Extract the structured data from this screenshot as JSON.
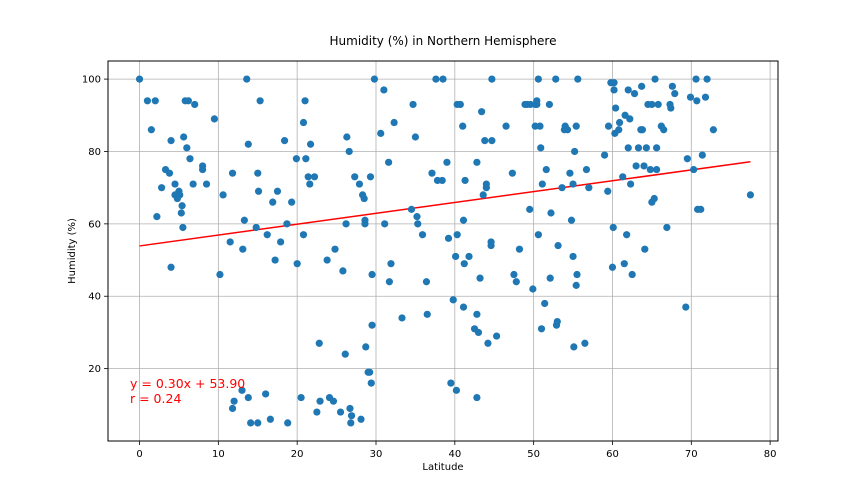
{
  "chart_data": {
    "type": "scatter",
    "title": "Humidity (%) in Northern Hemisphere",
    "xlabel": "Latitude",
    "ylabel": "Humidity (%)",
    "xlim": [
      -4,
      81
    ],
    "ylim": [
      0,
      105
    ],
    "x_ticks": [
      "0",
      "10",
      "20",
      "30",
      "40",
      "50",
      "60",
      "70",
      "80"
    ],
    "y_ticks": [
      "20",
      "40",
      "60",
      "80",
      "100"
    ],
    "grid": true,
    "point_color": "#1f77b4",
    "line_color": "#ff0000",
    "regression": {
      "slope": 0.3,
      "intercept": 53.9,
      "x_range": [
        0,
        77.5
      ]
    },
    "annotation_lines": [
      "y = 0.30x + 53.90",
      "r = 0.24"
    ],
    "annotation_color": "#ff0000",
    "points": [
      [
        0.0,
        100
      ],
      [
        1.0,
        94
      ],
      [
        1.5,
        86
      ],
      [
        2.0,
        94
      ],
      [
        2.2,
        62
      ],
      [
        2.8,
        70
      ],
      [
        3.3,
        75
      ],
      [
        3.8,
        74
      ],
      [
        4.0,
        83
      ],
      [
        4.0,
        48
      ],
      [
        4.5,
        71
      ],
      [
        4.5,
        68
      ],
      [
        4.8,
        67
      ],
      [
        5.0,
        69
      ],
      [
        5.1,
        68
      ],
      [
        5.3,
        63
      ],
      [
        5.4,
        65
      ],
      [
        5.5,
        59
      ],
      [
        5.6,
        84
      ],
      [
        5.8,
        94
      ],
      [
        6.0,
        81
      ],
      [
        6.2,
        94
      ],
      [
        6.4,
        78
      ],
      [
        6.8,
        71
      ],
      [
        7.0,
        93
      ],
      [
        8.0,
        76
      ],
      [
        8.0,
        75
      ],
      [
        8.5,
        71
      ],
      [
        9.5,
        89
      ],
      [
        10.2,
        46
      ],
      [
        10.6,
        68
      ],
      [
        11.5,
        55
      ],
      [
        11.8,
        74
      ],
      [
        11.8,
        9
      ],
      [
        12.0,
        11
      ],
      [
        13.0,
        14
      ],
      [
        13.1,
        53
      ],
      [
        13.3,
        61
      ],
      [
        13.6,
        100
      ],
      [
        13.8,
        82
      ],
      [
        13.8,
        12
      ],
      [
        14.1,
        5
      ],
      [
        14.8,
        59
      ],
      [
        15.0,
        74
      ],
      [
        15.1,
        69
      ],
      [
        15.3,
        94
      ],
      [
        15.0,
        5
      ],
      [
        16.0,
        13
      ],
      [
        16.2,
        57
      ],
      [
        16.6,
        6
      ],
      [
        16.9,
        66
      ],
      [
        17.2,
        50
      ],
      [
        17.5,
        69
      ],
      [
        17.9,
        55
      ],
      [
        18.4,
        83
      ],
      [
        18.7,
        60
      ],
      [
        18.8,
        5
      ],
      [
        19.3,
        66
      ],
      [
        19.9,
        78
      ],
      [
        20.0,
        49
      ],
      [
        20.5,
        12
      ],
      [
        20.8,
        88
      ],
      [
        20.8,
        57
      ],
      [
        21.0,
        94
      ],
      [
        21.1,
        78
      ],
      [
        21.4,
        73
      ],
      [
        21.6,
        71
      ],
      [
        21.7,
        82
      ],
      [
        22.2,
        73
      ],
      [
        22.5,
        8
      ],
      [
        22.8,
        27
      ],
      [
        22.9,
        11
      ],
      [
        23.8,
        50
      ],
      [
        24.1,
        12
      ],
      [
        24.6,
        11
      ],
      [
        24.8,
        53
      ],
      [
        25.5,
        8
      ],
      [
        25.8,
        47
      ],
      [
        26.1,
        24
      ],
      [
        26.2,
        60
      ],
      [
        26.3,
        84
      ],
      [
        26.6,
        80
      ],
      [
        26.7,
        9
      ],
      [
        26.8,
        5
      ],
      [
        26.9,
        7
      ],
      [
        27.3,
        73
      ],
      [
        27.9,
        71
      ],
      [
        28.1,
        6
      ],
      [
        28.3,
        68
      ],
      [
        28.5,
        67
      ],
      [
        28.6,
        61
      ],
      [
        28.6,
        60
      ],
      [
        28.7,
        26
      ],
      [
        29.0,
        19
      ],
      [
        29.2,
        19
      ],
      [
        29.3,
        73
      ],
      [
        29.4,
        16
      ],
      [
        29.5,
        46
      ],
      [
        29.5,
        32
      ],
      [
        29.8,
        100
      ],
      [
        30.6,
        85
      ],
      [
        31.0,
        97
      ],
      [
        31.1,
        60
      ],
      [
        31.6,
        77
      ],
      [
        31.7,
        44
      ],
      [
        31.9,
        49
      ],
      [
        32.3,
        88
      ],
      [
        33.3,
        34
      ],
      [
        34.5,
        64
      ],
      [
        34.7,
        93
      ],
      [
        35.0,
        84
      ],
      [
        35.2,
        62
      ],
      [
        35.3,
        60
      ],
      [
        35.9,
        57
      ],
      [
        36.4,
        44
      ],
      [
        36.5,
        35
      ],
      [
        37.1,
        74
      ],
      [
        37.6,
        100
      ],
      [
        37.8,
        72
      ],
      [
        38.4,
        72
      ],
      [
        38.5,
        100
      ],
      [
        39.0,
        77
      ],
      [
        39.2,
        56
      ],
      [
        39.5,
        16
      ],
      [
        39.8,
        39
      ],
      [
        40.1,
        51
      ],
      [
        40.2,
        14
      ],
      [
        40.3,
        57
      ],
      [
        40.3,
        93
      ],
      [
        40.7,
        93
      ],
      [
        41.0,
        87
      ],
      [
        41.1,
        61
      ],
      [
        41.1,
        37
      ],
      [
        41.2,
        49
      ],
      [
        41.3,
        72
      ],
      [
        41.8,
        51
      ],
      [
        42.5,
        31
      ],
      [
        42.8,
        77
      ],
      [
        42.8,
        12
      ],
      [
        42.8,
        35
      ],
      [
        43.0,
        30
      ],
      [
        43.2,
        45
      ],
      [
        43.4,
        91
      ],
      [
        43.6,
        68
      ],
      [
        43.8,
        83
      ],
      [
        44.0,
        70
      ],
      [
        44.0,
        71
      ],
      [
        44.2,
        27
      ],
      [
        44.6,
        54
      ],
      [
        44.6,
        55
      ],
      [
        44.7,
        100
      ],
      [
        44.7,
        83
      ],
      [
        45.3,
        29
      ],
      [
        46.5,
        87
      ],
      [
        47.3,
        74
      ],
      [
        47.5,
        46
      ],
      [
        47.8,
        44
      ],
      [
        48.2,
        53
      ],
      [
        48.9,
        93
      ],
      [
        49.2,
        93
      ],
      [
        49.5,
        64
      ],
      [
        49.6,
        93
      ],
      [
        49.9,
        42
      ],
      [
        50.2,
        87
      ],
      [
        50.2,
        93
      ],
      [
        50.4,
        93
      ],
      [
        50.4,
        94
      ],
      [
        50.6,
        57
      ],
      [
        50.6,
        100
      ],
      [
        50.8,
        87
      ],
      [
        50.9,
        81
      ],
      [
        51.0,
        31
      ],
      [
        51.1,
        71
      ],
      [
        51.4,
        38
      ],
      [
        51.6,
        75
      ],
      [
        52.0,
        93
      ],
      [
        52.1,
        45
      ],
      [
        52.2,
        63
      ],
      [
        52.8,
        100
      ],
      [
        52.9,
        32
      ],
      [
        53.0,
        33
      ],
      [
        53.1,
        54
      ],
      [
        53.6,
        70
      ],
      [
        53.9,
        86
      ],
      [
        54.0,
        87
      ],
      [
        54.3,
        86
      ],
      [
        54.6,
        74
      ],
      [
        54.8,
        61
      ],
      [
        55.0,
        51
      ],
      [
        55.0,
        71
      ],
      [
        55.1,
        26
      ],
      [
        55.2,
        80
      ],
      [
        55.4,
        87
      ],
      [
        55.4,
        43
      ],
      [
        55.5,
        46
      ],
      [
        55.6,
        100
      ],
      [
        56.5,
        27
      ],
      [
        56.7,
        75
      ],
      [
        57.0,
        70
      ],
      [
        59.0,
        79
      ],
      [
        59.4,
        69
      ],
      [
        59.5,
        87
      ],
      [
        59.8,
        99
      ],
      [
        60.0,
        48
      ],
      [
        60.1,
        59
      ],
      [
        60.2,
        97
      ],
      [
        60.2,
        99
      ],
      [
        60.3,
        85
      ],
      [
        60.4,
        92
      ],
      [
        60.8,
        86
      ],
      [
        60.9,
        88
      ],
      [
        61.3,
        73
      ],
      [
        61.5,
        49
      ],
      [
        61.6,
        90
      ],
      [
        61.8,
        57
      ],
      [
        62.0,
        97
      ],
      [
        62.0,
        81
      ],
      [
        62.2,
        89
      ],
      [
        62.3,
        71
      ],
      [
        62.5,
        46
      ],
      [
        62.8,
        96
      ],
      [
        63.0,
        76
      ],
      [
        63.3,
        81
      ],
      [
        63.6,
        86
      ],
      [
        63.7,
        98
      ],
      [
        63.8,
        86
      ],
      [
        64.0,
        76
      ],
      [
        64.1,
        53
      ],
      [
        64.3,
        81
      ],
      [
        64.5,
        93
      ],
      [
        64.8,
        75
      ],
      [
        65.0,
        66
      ],
      [
        65.0,
        93
      ],
      [
        65.3,
        67
      ],
      [
        65.4,
        100
      ],
      [
        65.6,
        81
      ],
      [
        65.6,
        75
      ],
      [
        65.8,
        93
      ],
      [
        66.2,
        87
      ],
      [
        66.5,
        86
      ],
      [
        66.9,
        59
      ],
      [
        67.3,
        93
      ],
      [
        67.4,
        92
      ],
      [
        67.6,
        98
      ],
      [
        67.9,
        96
      ],
      [
        69.3,
        37
      ],
      [
        69.5,
        78
      ],
      [
        69.9,
        95
      ],
      [
        70.3,
        75
      ],
      [
        70.6,
        100
      ],
      [
        70.7,
        94
      ],
      [
        70.8,
        64
      ],
      [
        71.2,
        64
      ],
      [
        71.4,
        79
      ],
      [
        71.8,
        95
      ],
      [
        72.0,
        100
      ],
      [
        72.8,
        86
      ],
      [
        77.5,
        68
      ]
    ]
  }
}
